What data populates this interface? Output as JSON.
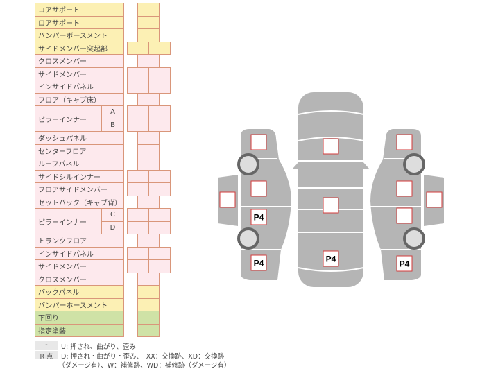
{
  "colors": {
    "yellow": "#fcf0b4",
    "pink": "#fde9ed",
    "green": "#cfe2a6",
    "border": "#d9967a",
    "car": "#b5b5b5",
    "mark": "#d33a3a"
  },
  "rows": [
    {
      "label": "コアサポート",
      "c": "y",
      "boxes": 1
    },
    {
      "label": "ロアサポート",
      "c": "y",
      "boxes": 1
    },
    {
      "label": "バンパーボースメント",
      "c": "y",
      "boxes": 1
    },
    {
      "label": "サイドメンバー突起部",
      "c": "y",
      "boxes": 2
    },
    {
      "label": "クロスメンバー",
      "c": "p",
      "boxes": 1
    },
    {
      "label": "サイドメンバー",
      "c": "p",
      "boxes": 2
    },
    {
      "label": "インサイドパネル",
      "c": "p",
      "boxes": 2
    },
    {
      "label": "フロア（キャブ床）",
      "c": "p",
      "boxes": 1
    },
    {
      "label": "ピラーインナー",
      "sub": [
        "A",
        "B"
      ],
      "c": "p",
      "boxes": 2
    },
    {
      "label": "ダッシュパネル",
      "c": "p",
      "boxes": 1
    },
    {
      "label": "センターフロア",
      "c": "p",
      "boxes": 1
    },
    {
      "label": "ルーフパネル",
      "c": "p",
      "boxes": 1
    },
    {
      "label": "サイドシルインナー",
      "c": "p",
      "boxes": 2
    },
    {
      "label": "フロアサイドメンバー",
      "c": "p",
      "boxes": 2
    },
    {
      "label": "セットバック（キャブ背）",
      "c": "p",
      "boxes": 1
    },
    {
      "label": "ピラーインナー",
      "sub": [
        "C",
        "D"
      ],
      "c": "p",
      "boxes": 2
    },
    {
      "label": "トランクフロア",
      "c": "p",
      "boxes": 1
    },
    {
      "label": "インサイドパネル",
      "c": "p",
      "boxes": 2
    },
    {
      "label": "サイドメンバー",
      "c": "p",
      "boxes": 2
    },
    {
      "label": "クロスメンバー",
      "c": "p",
      "boxes": 1
    },
    {
      "label": "バックパネル",
      "c": "y",
      "boxes": 1
    },
    {
      "label": "バンパーホースメント",
      "c": "y",
      "boxes": 1
    },
    {
      "label": "下回り",
      "c": "g",
      "boxes": 1
    },
    {
      "label": "指定塗装",
      "c": "g",
      "boxes": 1
    }
  ],
  "legend": {
    "key1": "-",
    "text1": "U: 押され、曲がり、歪み",
    "key2": "R 点",
    "text2": "D: 押され・曲がり・歪み、　XX：交換跡、XD：交換跡",
    "text3": "（ダメージ有）、W：補修跡、WD：補修跡（ダメージ有）"
  },
  "diagram": {
    "marks": [
      "",
      "",
      "",
      "P4",
      "P4",
      "",
      "",
      "P4",
      "",
      "",
      "",
      "",
      "P4"
    ]
  }
}
